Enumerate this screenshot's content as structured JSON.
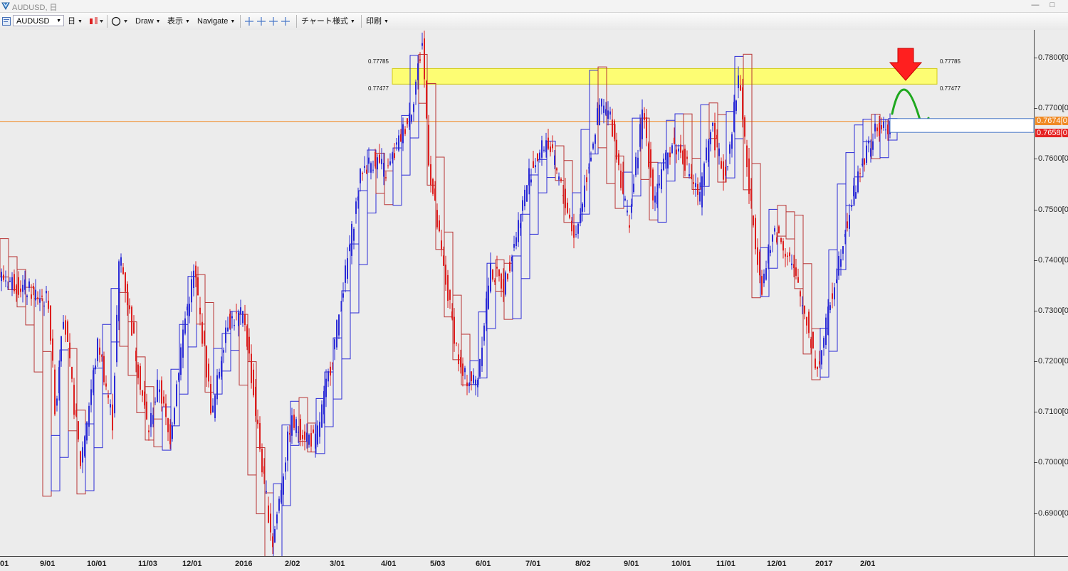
{
  "window": {
    "title": "AUDUSD, 日",
    "minimize": "—",
    "maximize": "□"
  },
  "toolbar": {
    "symbol": "AUDUSD",
    "timeframe": "日",
    "draw": "Draw",
    "view": "表示",
    "navigate": "Navigate",
    "chart_style": "チャート様式",
    "print": "印刷"
  },
  "chart_data": {
    "type": "line",
    "symbol": "AUDUSD",
    "timeframe": "日",
    "ylim": [
      0.6815,
      0.7855
    ],
    "y_ticks": [
      "0.7800[0",
      "0.7700[0",
      "0.7600[0",
      "0.7500[0",
      "0.7400[0",
      "0.7300[0",
      "0.7200[0",
      "0.7100[0",
      "0.7000[0",
      "0.6900[0"
    ],
    "x_ticks": [
      "01",
      "9/01",
      "10/01",
      "11/03",
      "12/01",
      "2016",
      "2/02",
      "3/01",
      "4/01",
      "5/03",
      "6/01",
      "7/01",
      "8/02",
      "9/01",
      "10/01",
      "11/01",
      "12/01",
      "2017",
      "2/01"
    ],
    "price_tags": [
      {
        "text": "0.7674[0",
        "value": 0.7674,
        "color": "#f08a24"
      },
      {
        "text": "0.7658[0",
        "value": 0.7658,
        "color": "#e52222"
      }
    ],
    "zone": {
      "upper": 0.77785,
      "lower": 0.77477,
      "upper_label": "0.77785",
      "lower_label": "0.77477",
      "color": "#ffff66"
    },
    "hline": {
      "value": 0.7674,
      "color": "#f08a24"
    },
    "bull_color": "#2b2bd6",
    "bear_color": "#dd1f1f",
    "box_up_color": "#2b2bd6",
    "box_down_color": "#b83535",
    "anchors": [
      [
        0,
        0.737
      ],
      [
        70,
        0.732
      ],
      [
        80,
        0.709
      ],
      [
        90,
        0.731
      ],
      [
        115,
        0.7
      ],
      [
        140,
        0.724
      ],
      [
        160,
        0.708
      ],
      [
        170,
        0.742
      ],
      [
        210,
        0.706
      ],
      [
        225,
        0.716
      ],
      [
        240,
        0.704
      ],
      [
        260,
        0.727
      ],
      [
        275,
        0.738
      ],
      [
        300,
        0.709
      ],
      [
        320,
        0.728
      ],
      [
        345,
        0.729
      ],
      [
        372,
        0.697
      ],
      [
        385,
        0.684
      ],
      [
        410,
        0.708
      ],
      [
        445,
        0.704
      ],
      [
        470,
        0.722
      ],
      [
        490,
        0.74
      ],
      [
        510,
        0.758
      ],
      [
        530,
        0.76
      ],
      [
        545,
        0.757
      ],
      [
        580,
        0.77
      ],
      [
        595,
        0.783
      ],
      [
        605,
        0.758
      ],
      [
        625,
        0.738
      ],
      [
        650,
        0.717
      ],
      [
        672,
        0.716
      ],
      [
        690,
        0.738
      ],
      [
        710,
        0.735
      ],
      [
        725,
        0.744
      ],
      [
        745,
        0.757
      ],
      [
        770,
        0.764
      ],
      [
        795,
        0.752
      ],
      [
        810,
        0.744
      ],
      [
        830,
        0.76
      ],
      [
        845,
        0.771
      ],
      [
        860,
        0.768
      ],
      [
        885,
        0.747
      ],
      [
        905,
        0.77
      ],
      [
        920,
        0.752
      ],
      [
        945,
        0.763
      ],
      [
        960,
        0.761
      ],
      [
        985,
        0.752
      ],
      [
        1000,
        0.767
      ],
      [
        1020,
        0.756
      ],
      [
        1040,
        0.777
      ],
      [
        1055,
        0.752
      ],
      [
        1072,
        0.735
      ],
      [
        1090,
        0.746
      ],
      [
        1110,
        0.741
      ],
      [
        1135,
        0.728
      ],
      [
        1150,
        0.718
      ],
      [
        1170,
        0.733
      ],
      [
        1190,
        0.747
      ],
      [
        1210,
        0.758
      ],
      [
        1230,
        0.765
      ],
      [
        1248,
        0.7665
      ]
    ],
    "swings": [
      [
        0,
        0.742
      ],
      [
        56,
        0.728
      ],
      [
        75,
        0.69
      ],
      [
        96,
        0.72
      ],
      [
        120,
        0.696
      ],
      [
        165,
        0.733
      ],
      [
        200,
        0.715
      ],
      [
        222,
        0.703
      ],
      [
        245,
        0.711
      ],
      [
        280,
        0.738
      ],
      [
        300,
        0.716
      ],
      [
        340,
        0.729
      ],
      [
        360,
        0.7
      ],
      [
        385,
        0.683
      ],
      [
        415,
        0.712
      ],
      [
        440,
        0.703
      ],
      [
        475,
        0.718
      ],
      [
        505,
        0.742
      ],
      [
        525,
        0.76
      ],
      [
        552,
        0.753
      ],
      [
        575,
        0.766
      ],
      [
        593,
        0.783
      ],
      [
        608,
        0.762
      ],
      [
        640,
        0.726
      ],
      [
        668,
        0.715
      ],
      [
        700,
        0.741
      ],
      [
        720,
        0.73
      ],
      [
        755,
        0.755
      ],
      [
        785,
        0.762
      ],
      [
        810,
        0.745
      ],
      [
        840,
        0.776
      ],
      [
        855,
        0.762
      ],
      [
        882,
        0.75
      ],
      [
        905,
        0.771
      ],
      [
        918,
        0.746
      ],
      [
        955,
        0.77
      ],
      [
        980,
        0.753
      ],
      [
        1000,
        0.772
      ],
      [
        1022,
        0.757
      ],
      [
        1044,
        0.778
      ],
      [
        1070,
        0.732
      ],
      [
        1090,
        0.748
      ],
      [
        1120,
        0.746
      ],
      [
        1145,
        0.718
      ],
      [
        1160,
        0.72
      ],
      [
        1185,
        0.751
      ],
      [
        1218,
        0.768
      ],
      [
        1235,
        0.762
      ],
      [
        1248,
        0.7662
      ]
    ],
    "annotations": [
      "red-down-arrow",
      "green-curved-arrow"
    ]
  }
}
